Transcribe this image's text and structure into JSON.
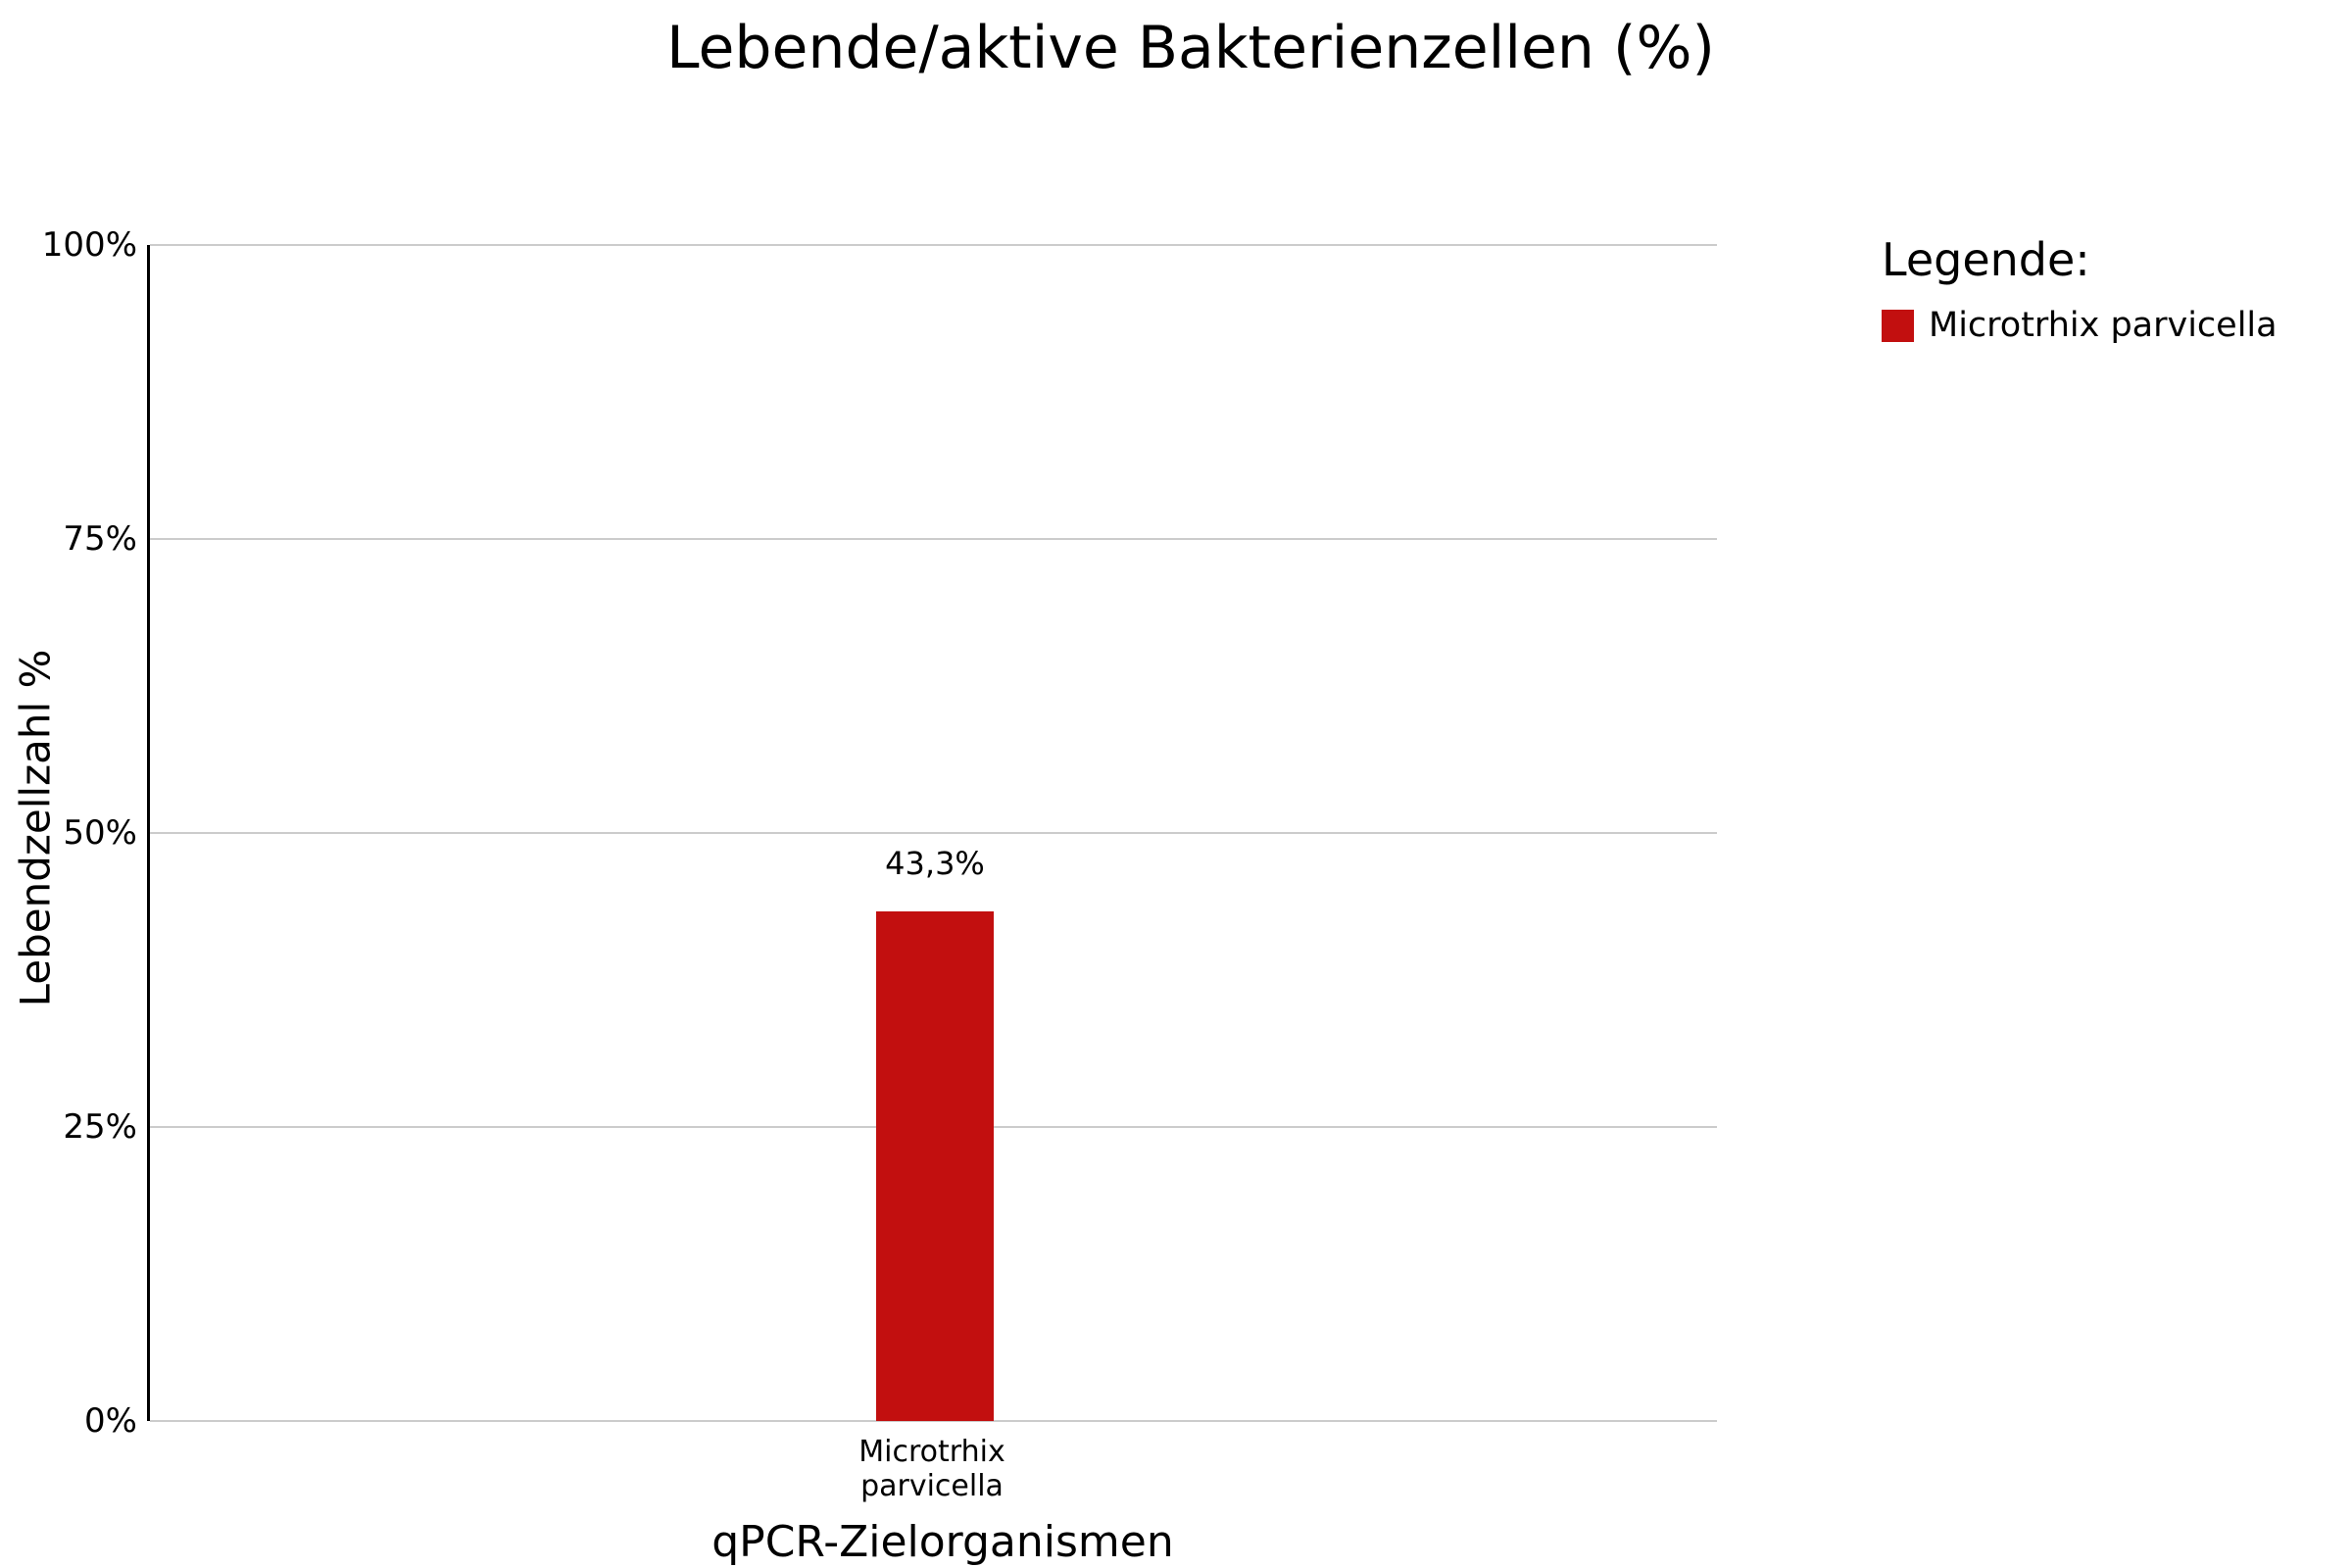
{
  "title": "Lebende/aktive Bakterienzellen (%)",
  "y_axis": {
    "label": "Lebendzellzahl %",
    "ticks": [
      "100%",
      "75%",
      "50%",
      "25%",
      "0%"
    ]
  },
  "x_axis": {
    "label": "qPCR-Zielorganismen",
    "category": "Microtrhix parvicella"
  },
  "legend": {
    "title": "Legende:",
    "items": [
      {
        "label": "Microtrhix parvicella",
        "color": "#c20f0f"
      }
    ]
  },
  "colors": {
    "bar": "#c20f0f",
    "grid": "#cccccc",
    "axis": "#000000"
  },
  "chart_data": {
    "type": "bar",
    "title": "Lebende/aktive Bakterienzellen (%)",
    "categories": [
      "Microtrhix parvicella"
    ],
    "values": [
      43.3
    ],
    "value_labels": [
      "43,3%"
    ],
    "xlabel": "qPCR-Zielorganismen",
    "ylabel": "Lebendzellzahl %",
    "ylim": [
      0,
      100
    ],
    "yticks": [
      0,
      25,
      50,
      75,
      100
    ],
    "grid": true,
    "legend_position": "right",
    "series_color": "#c20f0f"
  }
}
